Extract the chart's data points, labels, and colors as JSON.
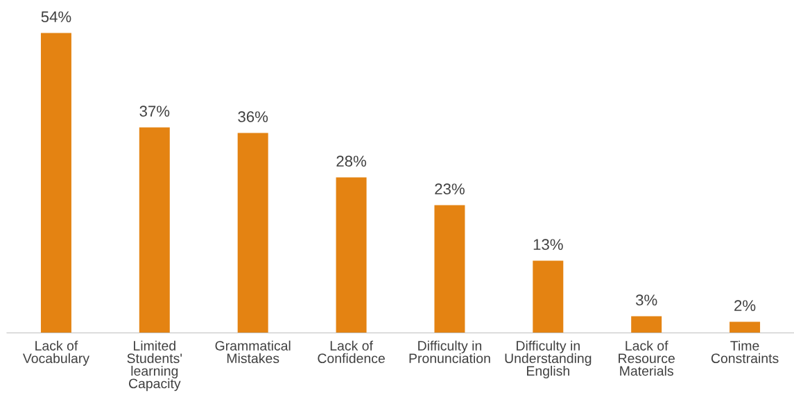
{
  "chart_data": {
    "type": "bar",
    "categories": [
      "Lack of\nVocabulary",
      "Limited\nStudents'\nlearning\nCapacity",
      "Grammatical\nMistakes",
      "Lack of\nConfidence",
      "Difficulty in\nPronunciation",
      "Difficulty in\nUnderstanding\nEnglish",
      "Lack of\nResource\nMaterials",
      "Time\nConstraints"
    ],
    "values": [
      54,
      37,
      36,
      28,
      23,
      13,
      3,
      2
    ],
    "value_labels": [
      "54%",
      "37%",
      "36%",
      "28%",
      "23%",
      "13%",
      "3%",
      "2%"
    ],
    "color": "#e48312"
  }
}
